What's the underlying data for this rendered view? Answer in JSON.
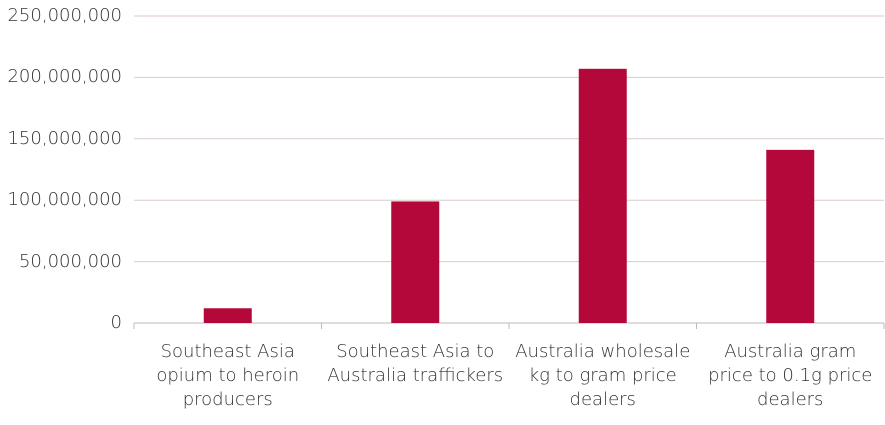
{
  "chart_data": {
    "type": "bar",
    "categories": [
      "Southeast Asia opium to heroin producers",
      "Southeast Asia to Australia traffickers",
      "Australia wholesale kg to gram price dealers",
      "Australia gram price to 0.1g price dealers"
    ],
    "values": [
      12000000,
      99000000,
      207000000,
      141000000
    ],
    "color": "#b5083a",
    "ylim": [
      0,
      250000000
    ],
    "yticks": [
      0,
      {
        "value": 50000000,
        "label": "50,000,000"
      },
      {
        "value": 100000000,
        "label": "100,000,000"
      },
      {
        "value": 150000000,
        "label": "150,000,000"
      },
      {
        "value": 200000000,
        "label": "200,000,000"
      },
      {
        "value": 250000000,
        "label": "250,000,000"
      }
    ],
    "grid": true
  }
}
